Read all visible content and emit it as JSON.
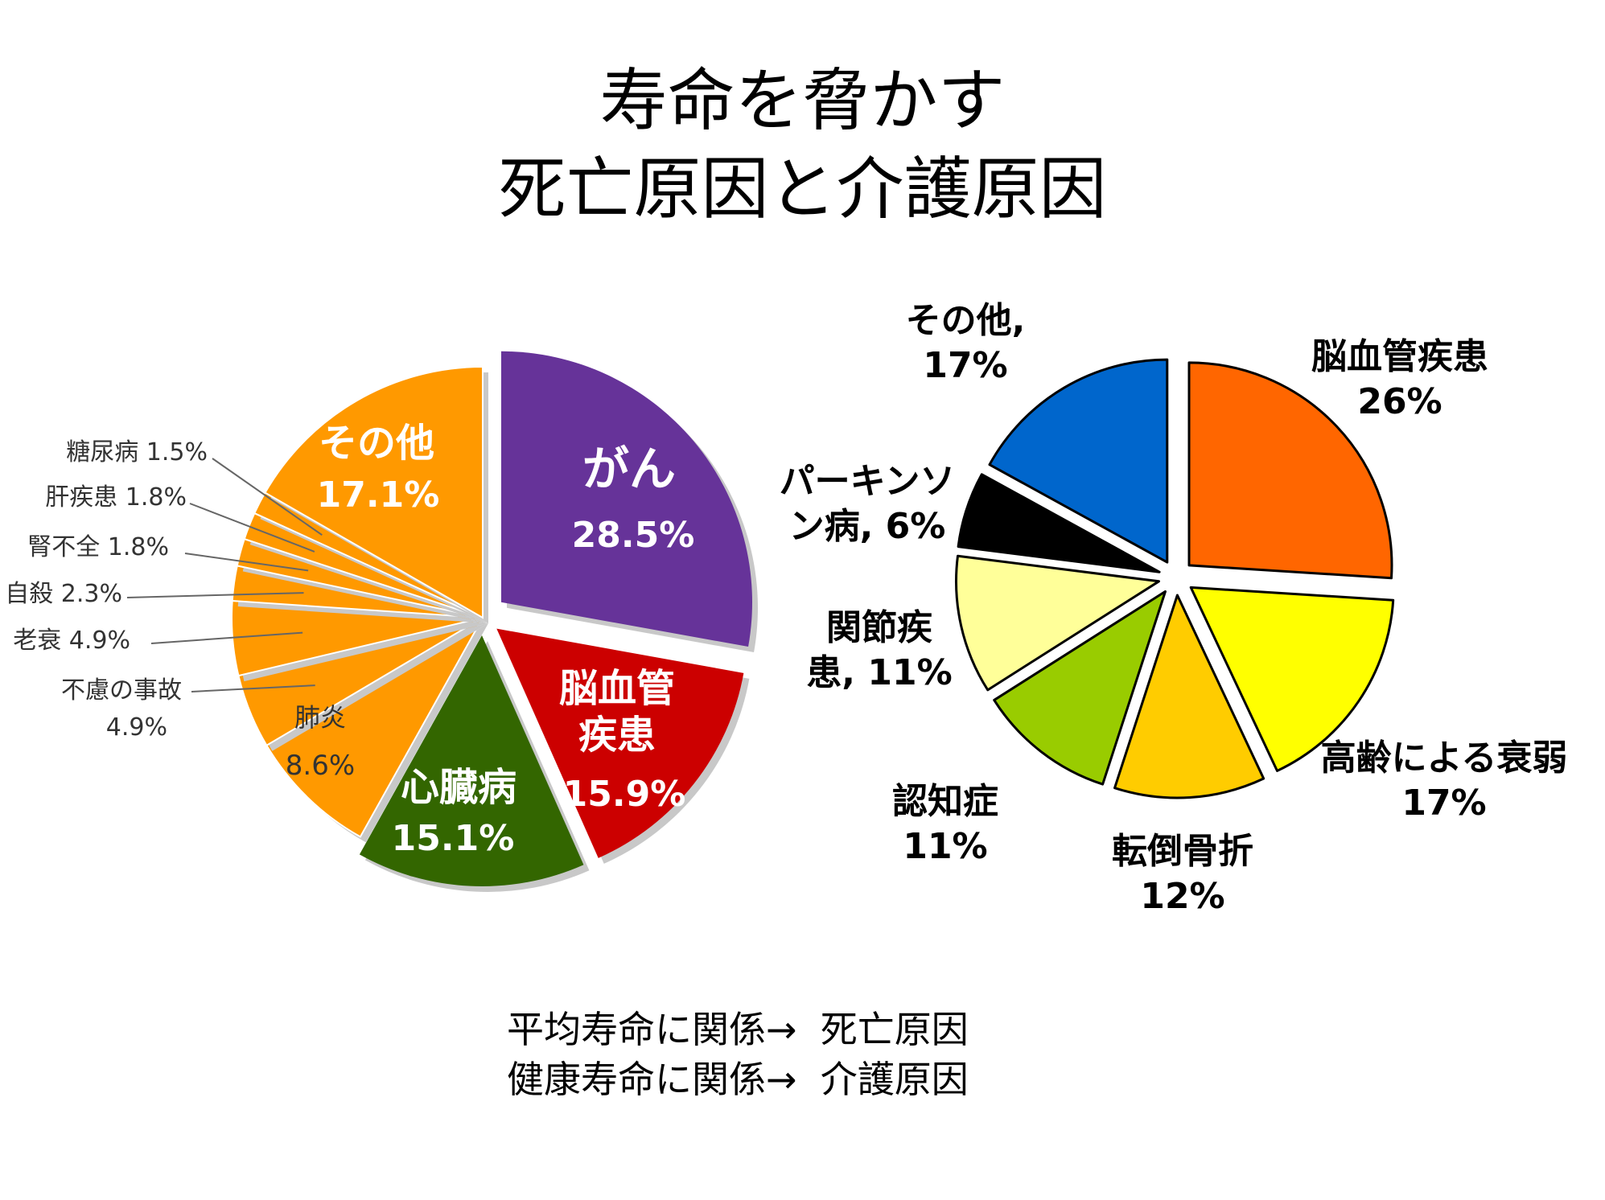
{
  "title": {
    "line1": "寿命を脅かす",
    "line2": "死亡原因と介護原因"
  },
  "footer": {
    "line1_label": "平均寿命に関係→",
    "line1_value": "死亡原因",
    "line2_label": "健康寿命に関係→",
    "line2_value": "介護原因"
  },
  "chart_data": [
    {
      "type": "pie",
      "title": "",
      "slices": [
        {
          "label": "がん",
          "value_text": "28.5%",
          "value": 28.5,
          "color": "#663399"
        },
        {
          "label": "脳血管疾患",
          "label_lines": [
            "脳血管",
            "疾患"
          ],
          "value_text": "15.9%",
          "value": 15.9,
          "color": "#cc0000"
        },
        {
          "label": "心臓病",
          "value_text": "15.1%",
          "value": 15.1,
          "color": "#336600"
        },
        {
          "label": "肺炎",
          "value_text": "8.6%",
          "value": 8.6,
          "color": "#ff9900"
        },
        {
          "label": "不慮の事故",
          "value_text": "4.9%",
          "value": 4.9,
          "color": "#ff9900"
        },
        {
          "label": "老衰",
          "value_text": "4.9%",
          "value": 4.9,
          "color": "#ff9900"
        },
        {
          "label": "自殺",
          "value_text": "2.3%",
          "value": 2.3,
          "color": "#ff9900"
        },
        {
          "label": "腎不全",
          "value_text": "1.8%",
          "value": 1.8,
          "color": "#ff9900"
        },
        {
          "label": "肝疾患",
          "value_text": "1.8%",
          "value": 1.8,
          "color": "#ff9900"
        },
        {
          "label": "糖尿病",
          "value_text": "1.5%",
          "value": 1.5,
          "color": "#ff9900"
        },
        {
          "label": "その他",
          "value_text": "17.1%",
          "value": 17.1,
          "color": "#ff9900"
        }
      ]
    },
    {
      "type": "pie",
      "title": "",
      "slices": [
        {
          "label": "脳血管疾患",
          "value_text": "26%",
          "value": 26,
          "color": "#ff6600"
        },
        {
          "label": "高齢による衰弱",
          "value_text": "17%",
          "value": 17,
          "color": "#ffff00"
        },
        {
          "label": "転倒骨折",
          "value_text": "12%",
          "value": 12,
          "color": "#ffcc00"
        },
        {
          "label": "認知症",
          "value_text": "11%",
          "value": 11,
          "color": "#99cc00"
        },
        {
          "label": "関節疾患",
          "label_lines": [
            "関節疾",
            "患, 11%"
          ],
          "value_text": "11%",
          "value": 11,
          "color": "#ffff99"
        },
        {
          "label": "パーキンソン病",
          "label_lines": [
            "パーキンソ",
            "ン病, 6%"
          ],
          "value_text": "6%",
          "value": 6,
          "color": "#000000"
        },
        {
          "label": "その他",
          "label_lines": [
            "その他,",
            "17%"
          ],
          "value_text": "17%",
          "value": 17,
          "color": "#0066cc"
        }
      ]
    }
  ]
}
